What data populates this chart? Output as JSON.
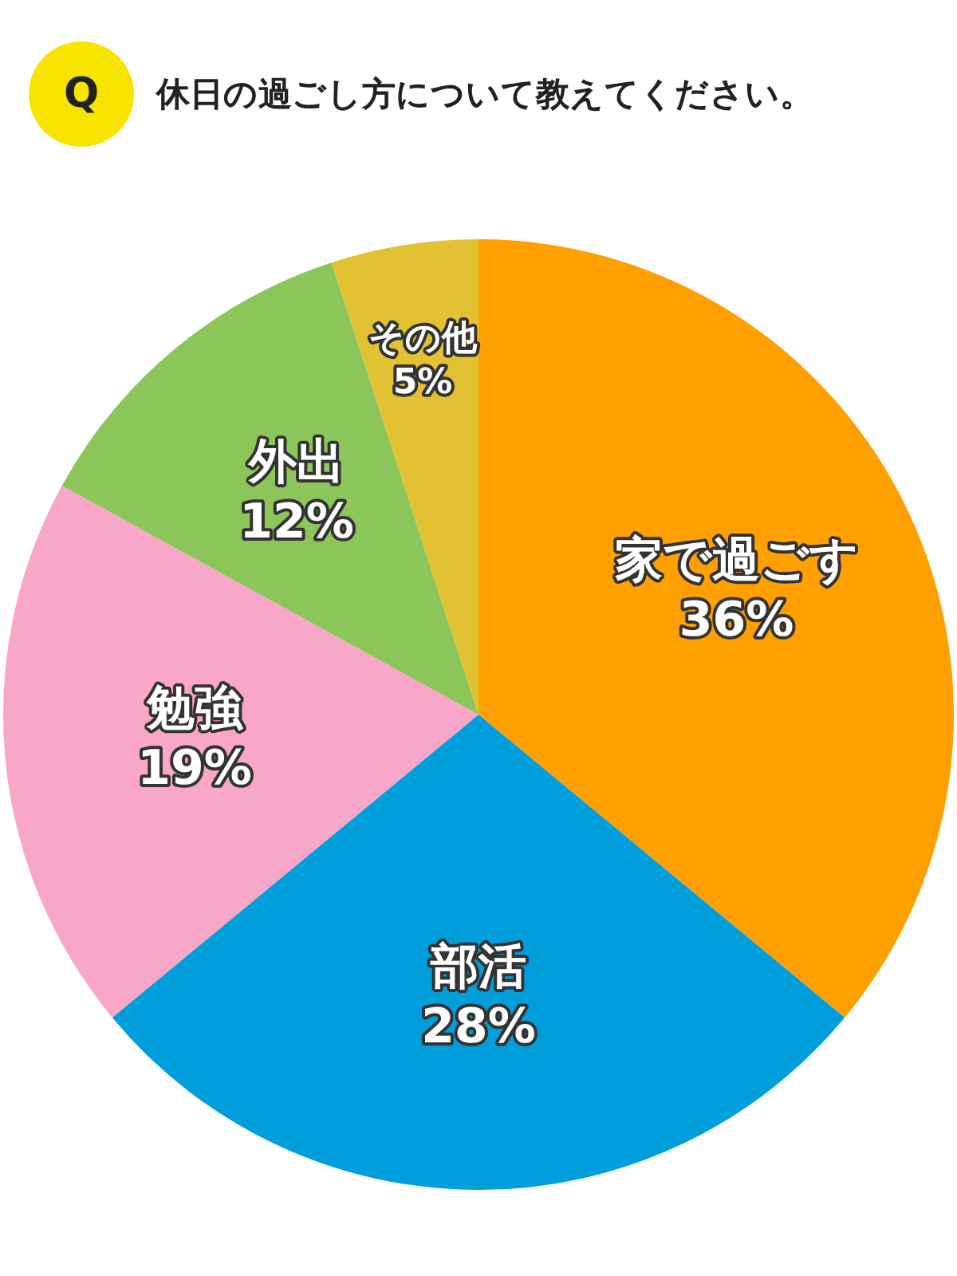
{
  "chart_data": {
    "type": "pie",
    "title": "休日の過ごし方について教えてください。",
    "annotations": [
      "Q"
    ],
    "categories": [
      "家で過ごす",
      "部活",
      "勉強",
      "外出",
      "その他"
    ],
    "values": [
      36,
      28,
      19,
      12,
      5
    ],
    "value_labels": [
      "36%",
      "28%",
      "19%",
      "12%",
      "5%"
    ],
    "colors": [
      "#ff9f00",
      "#009fdb",
      "#f8a7c8",
      "#8cc65a",
      "#e2c232"
    ],
    "legend": false
  }
}
